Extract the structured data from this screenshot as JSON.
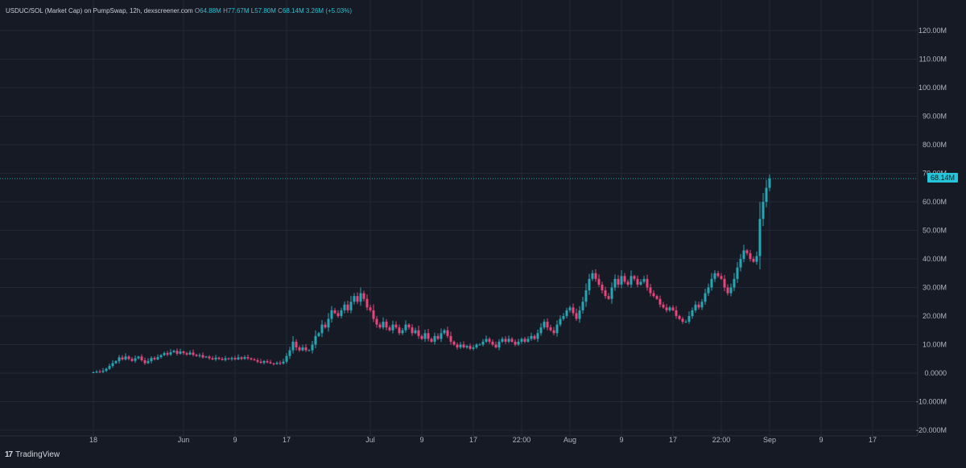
{
  "legend": {
    "pair": "USDUC/SOL (Market Cap) on PumpSwap, 12h, dexscreener.com",
    "o_label": "O",
    "o_value": "64.88M",
    "h_label": "H",
    "h_value": "77.67M",
    "l_label": "L",
    "l_value": "57.80M",
    "c_label": "C",
    "c_value": "68.14M",
    "change": "3.26M (+5.03%)"
  },
  "price_tag": "68.14M",
  "branding": {
    "mark": "17",
    "name": "TradingView"
  },
  "colors": {
    "up": "#26a6b4",
    "down": "#e8457a",
    "background": "#161a25",
    "grid": "#222836",
    "last_price": "#26c6da"
  },
  "chart_data": {
    "type": "candlestick",
    "timeframe": "12h",
    "ylim": [
      -20,
      125
    ],
    "y_ticks": [
      -20,
      -10,
      0,
      10,
      20,
      30,
      40,
      50,
      60,
      70,
      80,
      90,
      100,
      110,
      120
    ],
    "y_tick_labels": [
      "-20.000M",
      "-10.000M",
      "0.0000",
      "10.00M",
      "20.00M",
      "30.00M",
      "40.00M",
      "50.00M",
      "60.00M",
      "70.00M",
      "80.00M",
      "90.00M",
      "100.00M",
      "110.00M",
      "120.00M"
    ],
    "x_ticks": [
      {
        "label": "18",
        "bar": 0
      },
      {
        "label": "Jun",
        "bar": 28
      },
      {
        "label": "9",
        "bar": 44
      },
      {
        "label": "17",
        "bar": 60
      },
      {
        "label": "Jul",
        "bar": 86
      },
      {
        "label": "9",
        "bar": 102
      },
      {
        "label": "17",
        "bar": 118
      },
      {
        "label": "22:00",
        "bar": 133
      },
      {
        "label": "Aug",
        "bar": 148
      },
      {
        "label": "9",
        "bar": 164
      },
      {
        "label": "17",
        "bar": 180
      },
      {
        "label": "22:00",
        "bar": 195
      },
      {
        "label": "Sep",
        "bar": 210
      },
      {
        "label": "9",
        "bar": 226
      },
      {
        "label": "17",
        "bar": 242
      }
    ],
    "last_close": 68.14,
    "closes": [
      0.3,
      0.5,
      0.4,
      0.8,
      1.5,
      2.5,
      3.5,
      4.2,
      5.5,
      4.8,
      5.8,
      5.0,
      4.3,
      5.2,
      5.8,
      4.5,
      3.5,
      4.2,
      5.3,
      4.8,
      5.6,
      6.3,
      7.0,
      6.5,
      7.3,
      7.8,
      6.8,
      7.6,
      7.0,
      6.5,
      7.2,
      6.4,
      6.0,
      6.3,
      5.5,
      5.8,
      5.2,
      4.8,
      5.4,
      5.0,
      4.6,
      5.2,
      4.9,
      5.3,
      4.8,
      5.5,
      5.0,
      5.6,
      5.2,
      4.8,
      4.5,
      4.0,
      3.6,
      4.2,
      3.8,
      3.4,
      3.2,
      3.6,
      3.4,
      4.0,
      6.0,
      8.0,
      11.0,
      9.0,
      8.0,
      9.0,
      8.0,
      8.0,
      10.0,
      13.0,
      14.0,
      17.0,
      16.0,
      19.0,
      22.0,
      21.0,
      20.0,
      22.0,
      24.0,
      22.0,
      25.0,
      27.0,
      25.0,
      28.0,
      26.0,
      23.0,
      22.0,
      19.0,
      17.0,
      16.0,
      18.0,
      16.0,
      15.0,
      17.0,
      16.0,
      14.0,
      15.0,
      17.0,
      16.0,
      14.0,
      15.0,
      13.0,
      12.0,
      14.0,
      12.0,
      11.0,
      13.0,
      12.0,
      14.0,
      15.0,
      13.0,
      11.0,
      10.0,
      9.0,
      10.0,
      9.0,
      9.5,
      8.5,
      9.0,
      10.0,
      10.0,
      11.0,
      12.0,
      11.0,
      10.0,
      9.0,
      11.0,
      12.0,
      11.0,
      12.0,
      11.0,
      10.0,
      11.0,
      12.0,
      11.0,
      12.0,
      13.0,
      12.0,
      14.0,
      16.0,
      18.0,
      16.0,
      15.0,
      14.0,
      17.0,
      19.0,
      20.0,
      22.0,
      23.0,
      21.0,
      19.0,
      22.0,
      25.0,
      29.0,
      33.0,
      35.0,
      33.0,
      31.0,
      29.0,
      27.0,
      26.0,
      30.0,
      33.0,
      31.0,
      34.0,
      32.0,
      31.0,
      34.0,
      33.0,
      31.0,
      32.0,
      33.0,
      30.0,
      28.0,
      27.0,
      26.0,
      24.0,
      23.0,
      22.0,
      23.0,
      22.0,
      20.0,
      19.0,
      18.0,
      18.0,
      20.0,
      22.0,
      24.0,
      23.0,
      25.0,
      28.0,
      30.0,
      33.0,
      35.0,
      34.0,
      33.0,
      30.0,
      28.0,
      30.0,
      33.0,
      37.0,
      40.0,
      43.0,
      42.0,
      40.0,
      39.0,
      41.0,
      54.0,
      60.0,
      64.9,
      68.14
    ]
  }
}
